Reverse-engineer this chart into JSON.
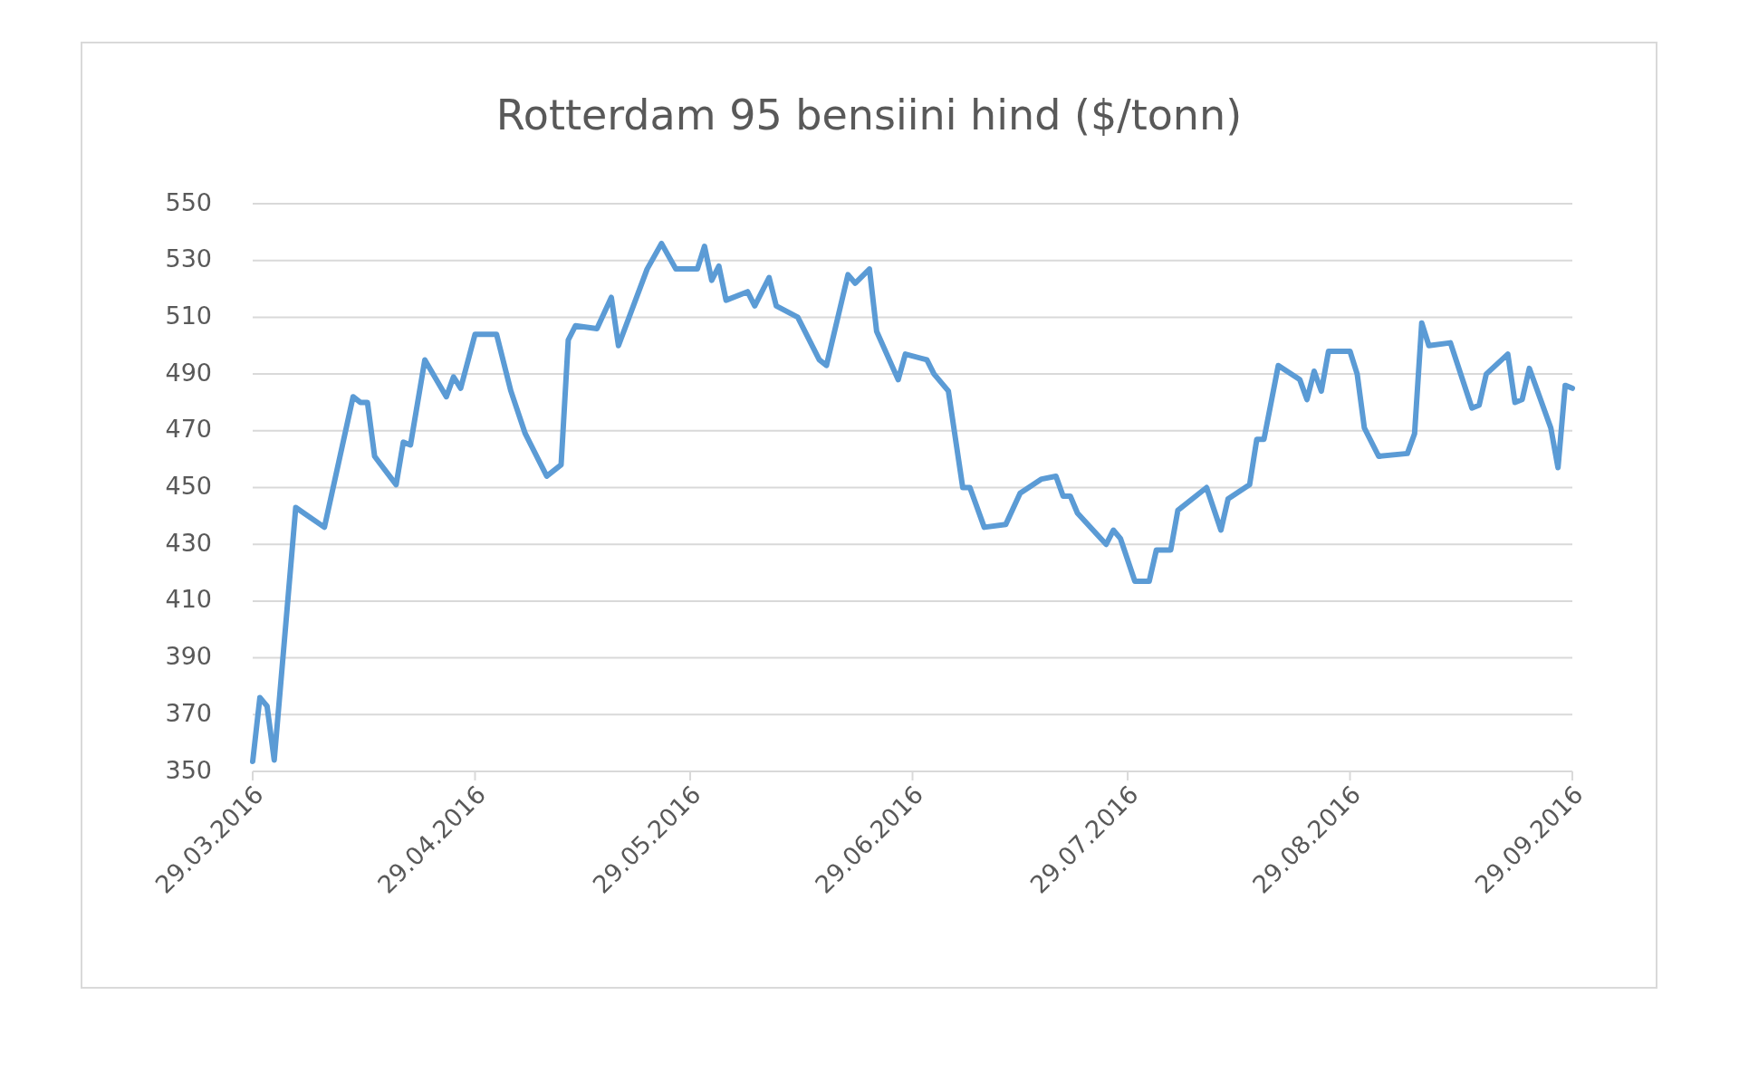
{
  "chart_data": {
    "type": "line",
    "title": "Rotterdam 95 bensiini hind ($/tonn)",
    "x": [
      "2016-03-29",
      "2016-03-30",
      "2016-03-31",
      "2016-04-01",
      "2016-04-04",
      "2016-04-08",
      "2016-04-12",
      "2016-04-13",
      "2016-04-14",
      "2016-04-15",
      "2016-04-18",
      "2016-04-19",
      "2016-04-20",
      "2016-04-22",
      "2016-04-25",
      "2016-04-26",
      "2016-04-27",
      "2016-04-29",
      "2016-05-02",
      "2016-05-04",
      "2016-05-06",
      "2016-05-09",
      "2016-05-11",
      "2016-05-12",
      "2016-05-13",
      "2016-05-16",
      "2016-05-18",
      "2016-05-19",
      "2016-05-23",
      "2016-05-25",
      "2016-05-27",
      "2016-05-30",
      "2016-05-31",
      "2016-06-01",
      "2016-06-02",
      "2016-06-03",
      "2016-06-06",
      "2016-06-07",
      "2016-06-09",
      "2016-06-10",
      "2016-06-13",
      "2016-06-16",
      "2016-06-17",
      "2016-06-20",
      "2016-06-21",
      "2016-06-23",
      "2016-06-24",
      "2016-06-27",
      "2016-06-28",
      "2016-07-01",
      "2016-07-02",
      "2016-07-04",
      "2016-07-06",
      "2016-07-07",
      "2016-07-09",
      "2016-07-12",
      "2016-07-14",
      "2016-07-17",
      "2016-07-19",
      "2016-07-20",
      "2016-07-21",
      "2016-07-22",
      "2016-07-26",
      "2016-07-27",
      "2016-07-28",
      "2016-07-30",
      "2016-08-01",
      "2016-08-02",
      "2016-08-04",
      "2016-08-05",
      "2016-08-09",
      "2016-08-11",
      "2016-08-12",
      "2016-08-15",
      "2016-08-16",
      "2016-08-17",
      "2016-08-19",
      "2016-08-22",
      "2016-08-23",
      "2016-08-24",
      "2016-08-25",
      "2016-08-26",
      "2016-08-29",
      "2016-08-30",
      "2016-08-31",
      "2016-09-02",
      "2016-09-06",
      "2016-09-07",
      "2016-09-08",
      "2016-09-09",
      "2016-09-12",
      "2016-09-15",
      "2016-09-16",
      "2016-09-17",
      "2016-09-20",
      "2016-09-21",
      "2016-09-22",
      "2016-09-23",
      "2016-09-26",
      "2016-09-27",
      "2016-09-28",
      "2016-09-29"
    ],
    "series": [
      {
        "color": "#5b9bd5",
        "values": [
          353.5,
          376,
          373,
          354,
          443,
          436,
          482,
          480,
          480,
          461,
          451,
          466,
          465,
          495,
          482,
          489,
          485,
          504,
          504,
          484,
          469,
          454,
          458,
          502,
          507,
          506,
          517,
          500,
          527,
          536,
          527,
          527,
          535,
          523,
          528,
          516,
          519,
          514,
          524,
          514,
          510,
          495,
          493,
          525,
          522,
          527,
          505,
          488,
          497,
          495,
          490,
          484,
          450,
          450,
          436,
          437,
          448,
          453,
          454,
          447,
          447,
          441,
          430,
          435,
          432,
          417,
          417,
          428,
          428,
          442,
          450,
          435,
          446,
          451,
          467,
          467,
          493,
          488,
          481,
          491,
          484,
          498,
          498,
          490,
          471,
          461,
          462,
          469,
          508,
          500,
          501,
          478,
          479,
          490,
          497,
          480,
          481,
          492,
          471,
          457,
          486,
          485
        ]
      }
    ],
    "xlim": [
      "2016-03-29",
      "2016-09-29"
    ],
    "xticks": [
      {
        "value": "2016-03-29",
        "label": "29.03.2016"
      },
      {
        "value": "2016-04-29",
        "label": "29.04.2016"
      },
      {
        "value": "2016-05-29",
        "label": "29.05.2016"
      },
      {
        "value": "2016-06-29",
        "label": "29.06.2016"
      },
      {
        "value": "2016-07-29",
        "label": "29.07.2016"
      },
      {
        "value": "2016-08-29",
        "label": "29.08.2016"
      },
      {
        "value": "2016-09-29",
        "label": "29.09.2016"
      }
    ],
    "ylim": [
      350,
      550
    ],
    "yticks": [
      350,
      370,
      390,
      410,
      430,
      450,
      470,
      490,
      510,
      530,
      550
    ],
    "grid": "y",
    "marker": "none",
    "line_style": "solid"
  }
}
